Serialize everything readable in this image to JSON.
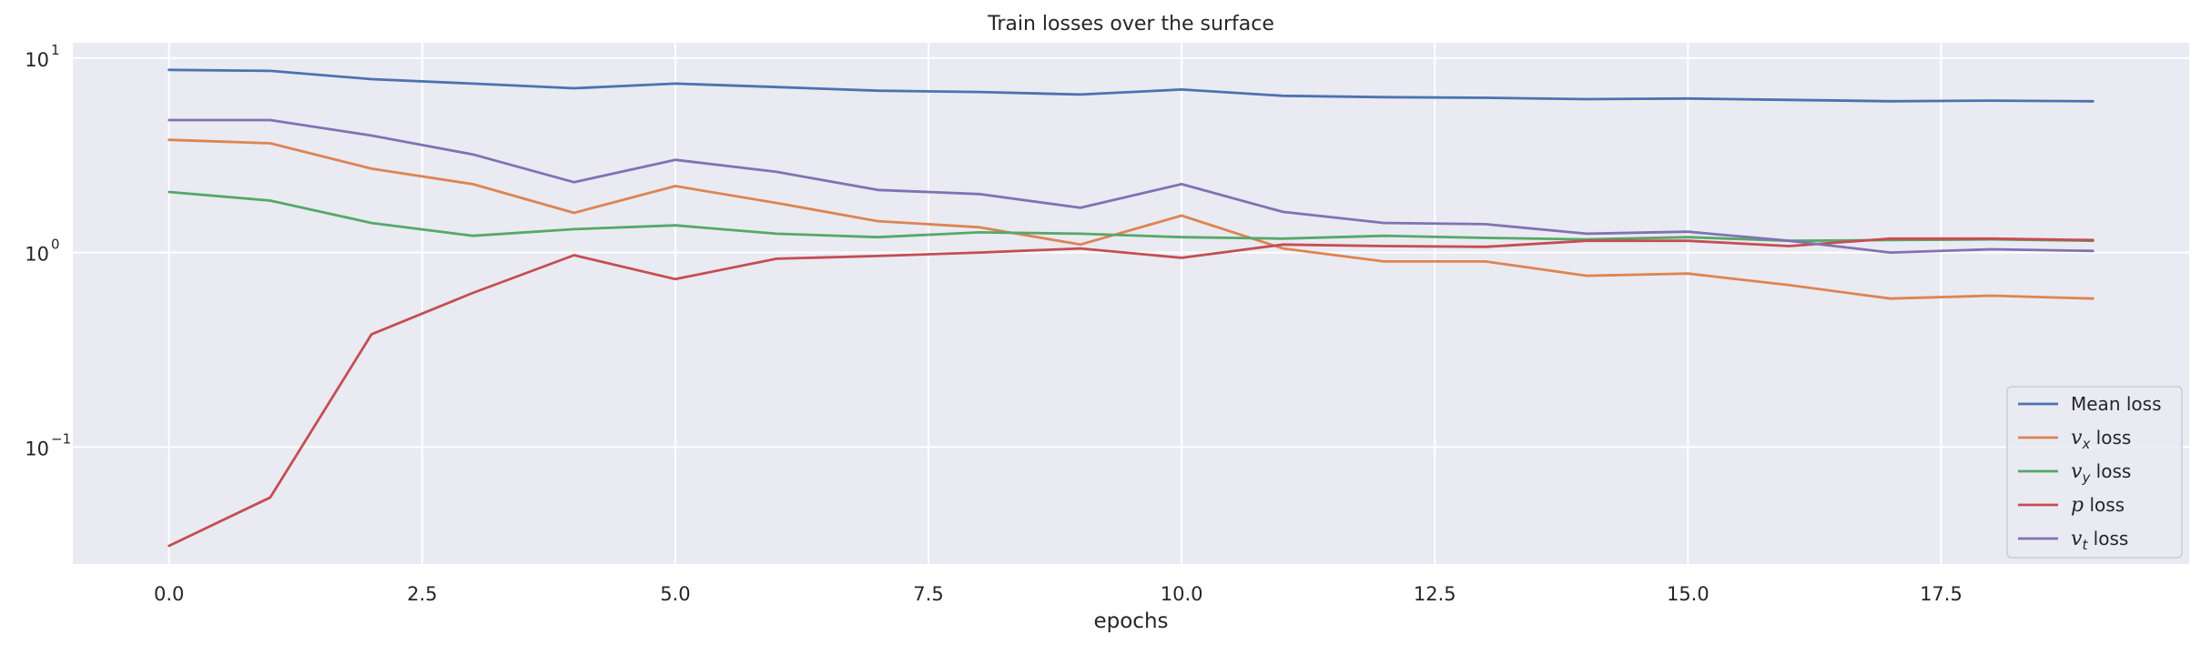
{
  "chart_data": {
    "type": "line",
    "title": "Train losses over the surface",
    "xlabel": "epochs",
    "ylabel": "",
    "yscale": "log",
    "xlim": [
      -0.95,
      19.95
    ],
    "ylim": [
      0.025,
      12
    ],
    "grid": true,
    "legend_position": "bottom-right",
    "x_ticks": [
      0.0,
      2.5,
      5.0,
      7.5,
      10.0,
      12.5,
      15.0,
      17.5
    ],
    "x_tick_labels": [
      "0.0",
      "2.5",
      "5.0",
      "7.5",
      "10.0",
      "12.5",
      "15.0",
      "17.5"
    ],
    "y_ticks": [
      {
        "value": 10,
        "base": "10",
        "exp": "1"
      },
      {
        "value": 1,
        "base": "10",
        "exp": "0"
      },
      {
        "value": 0.1,
        "base": "10",
        "exp": "−1"
      }
    ],
    "x": [
      0,
      1,
      2,
      3,
      4,
      5,
      6,
      7,
      8,
      9,
      10,
      11,
      12,
      13,
      14,
      15,
      16,
      17,
      18,
      19
    ],
    "series": [
      {
        "name": "Mean loss",
        "sym": "",
        "sub": "",
        "suffix": "Mean loss",
        "color": "#4c72b0",
        "values": [
          8.7,
          8.6,
          7.8,
          7.4,
          7.0,
          7.4,
          7.1,
          6.8,
          6.7,
          6.5,
          6.9,
          6.4,
          6.3,
          6.25,
          6.15,
          6.2,
          6.1,
          6.0,
          6.05,
          6.0
        ]
      },
      {
        "name": "v_x loss",
        "sym": "v",
        "sub": "x",
        "suffix": " loss",
        "color": "#dd8452",
        "values": [
          3.8,
          3.65,
          2.7,
          2.25,
          1.6,
          2.2,
          1.8,
          1.45,
          1.35,
          1.1,
          1.55,
          1.05,
          0.9,
          0.9,
          0.76,
          0.78,
          0.68,
          0.58,
          0.6,
          0.58
        ]
      },
      {
        "name": "v_y loss",
        "sym": "v",
        "sub": "y",
        "suffix": " loss",
        "color": "#55a868",
        "values": [
          2.05,
          1.85,
          1.42,
          1.22,
          1.32,
          1.38,
          1.25,
          1.2,
          1.27,
          1.25,
          1.2,
          1.18,
          1.22,
          1.19,
          1.17,
          1.2,
          1.15,
          1.16,
          1.17,
          1.15
        ]
      },
      {
        "name": "p loss",
        "sym": "p",
        "sub": "",
        "suffix": " loss",
        "color": "#c44e52",
        "values": [
          0.031,
          0.055,
          0.38,
          0.62,
          0.97,
          0.73,
          0.93,
          0.96,
          1.0,
          1.05,
          0.94,
          1.1,
          1.08,
          1.07,
          1.15,
          1.15,
          1.08,
          1.18,
          1.18,
          1.16
        ]
      },
      {
        "name": "v_t loss",
        "sym": "v",
        "sub": "t",
        "suffix": " loss",
        "color": "#8172b3",
        "values": [
          4.8,
          4.8,
          4.0,
          3.2,
          2.3,
          3.0,
          2.6,
          2.1,
          2.0,
          1.7,
          2.25,
          1.62,
          1.42,
          1.4,
          1.25,
          1.28,
          1.15,
          1.0,
          1.04,
          1.02
        ]
      }
    ]
  },
  "colors": {
    "plot_bg": "#eaeaf2",
    "grid": "#ffffff",
    "text": "#262626"
  }
}
